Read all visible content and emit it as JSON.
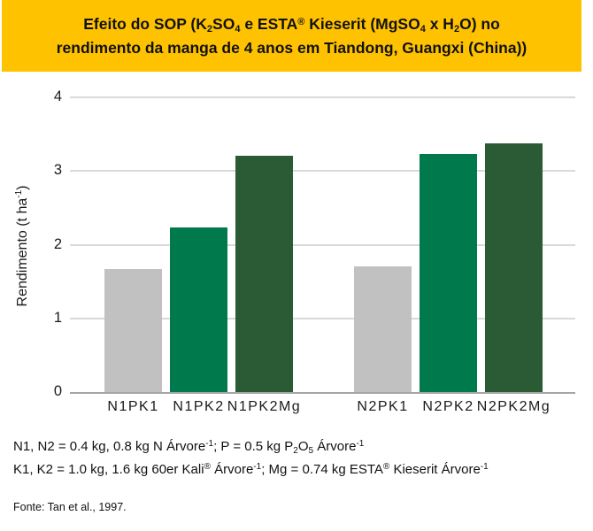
{
  "banner": {
    "bg_color": "#FFC200",
    "lines": [
      [
        {
          "t": "Efeito do SOP (K"
        },
        {
          "t": "2",
          "s": "sub"
        },
        {
          "t": "SO"
        },
        {
          "t": "4",
          "s": "sub"
        },
        {
          "t": " e ESTA"
        },
        {
          "t": "®",
          "s": "sup"
        },
        {
          "t": " Kieserit (MgSO"
        },
        {
          "t": "4",
          "s": "sub"
        },
        {
          "t": " x H"
        },
        {
          "t": "2",
          "s": "sub"
        },
        {
          "t": "O) no"
        }
      ],
      [
        {
          "t": "rendimento da manga de 4 anos em Tiandong, Guangxi (China))"
        }
      ]
    ]
  },
  "chart_data": {
    "type": "bar",
    "title": "Efeito do SOP (K2SO4 e ESTA® Kieserit (MgSO4 x H2O) no rendimento da manga de 4 anos em Tiandong, Guangxi (China))",
    "categories": [
      "N1PK1",
      "N1PK2",
      "N1PK2Mg",
      "N2PK1",
      "N2PK2",
      "N2PK2Mg"
    ],
    "values": [
      1.67,
      2.24,
      3.21,
      1.7,
      3.23,
      3.38
    ],
    "bar_colors": [
      "#C1C1C1",
      "#007A4D",
      "#2B5B34",
      "#C1C1C1",
      "#007A4D",
      "#2B5B34"
    ],
    "groups": [
      [
        "N1PK1",
        "N1PK2",
        "N1PK2Mg"
      ],
      [
        "N2PK1",
        "N2PK2",
        "N2PK2Mg"
      ]
    ],
    "xlabel": "",
    "ylabel": "Rendimento (t ha-1)",
    "ylabel_rich": [
      {
        "t": "Rendimento (t ha"
      },
      {
        "t": "-1",
        "s": "sup"
      },
      {
        "t": ")"
      }
    ],
    "ylim": [
      0,
      4
    ],
    "yticks": [
      0,
      1,
      2,
      3,
      4
    ],
    "grid": true,
    "gridline_color": "#D9D9D9",
    "axis_line_color": "#A6A6A6",
    "legend": "none"
  },
  "notes": {
    "lines": [
      [
        {
          "t": "N1, N2 = 0.4 kg, 0.8 kg N Árvore"
        },
        {
          "t": "-1",
          "s": "sup"
        },
        {
          "t": "; P = 0.5 kg P"
        },
        {
          "t": "2",
          "s": "sub"
        },
        {
          "t": "O"
        },
        {
          "t": "5",
          "s": "sub"
        },
        {
          "t": " Árvore"
        },
        {
          "t": "-1",
          "s": "sup"
        }
      ],
      [
        {
          "t": "K1, K2 = 1.0 kg, 1.6 kg 60er Kali"
        },
        {
          "t": "®",
          "s": "sup"
        },
        {
          "t": " Árvore"
        },
        {
          "t": "-1",
          "s": "sup"
        },
        {
          "t": "; Mg = 0.74 kg ESTA"
        },
        {
          "t": "®",
          "s": "sup"
        },
        {
          "t": " Kieserit Árvore"
        },
        {
          "t": "-1",
          "s": "sup"
        }
      ]
    ]
  },
  "source": "Fonte: Tan et al., 1997."
}
